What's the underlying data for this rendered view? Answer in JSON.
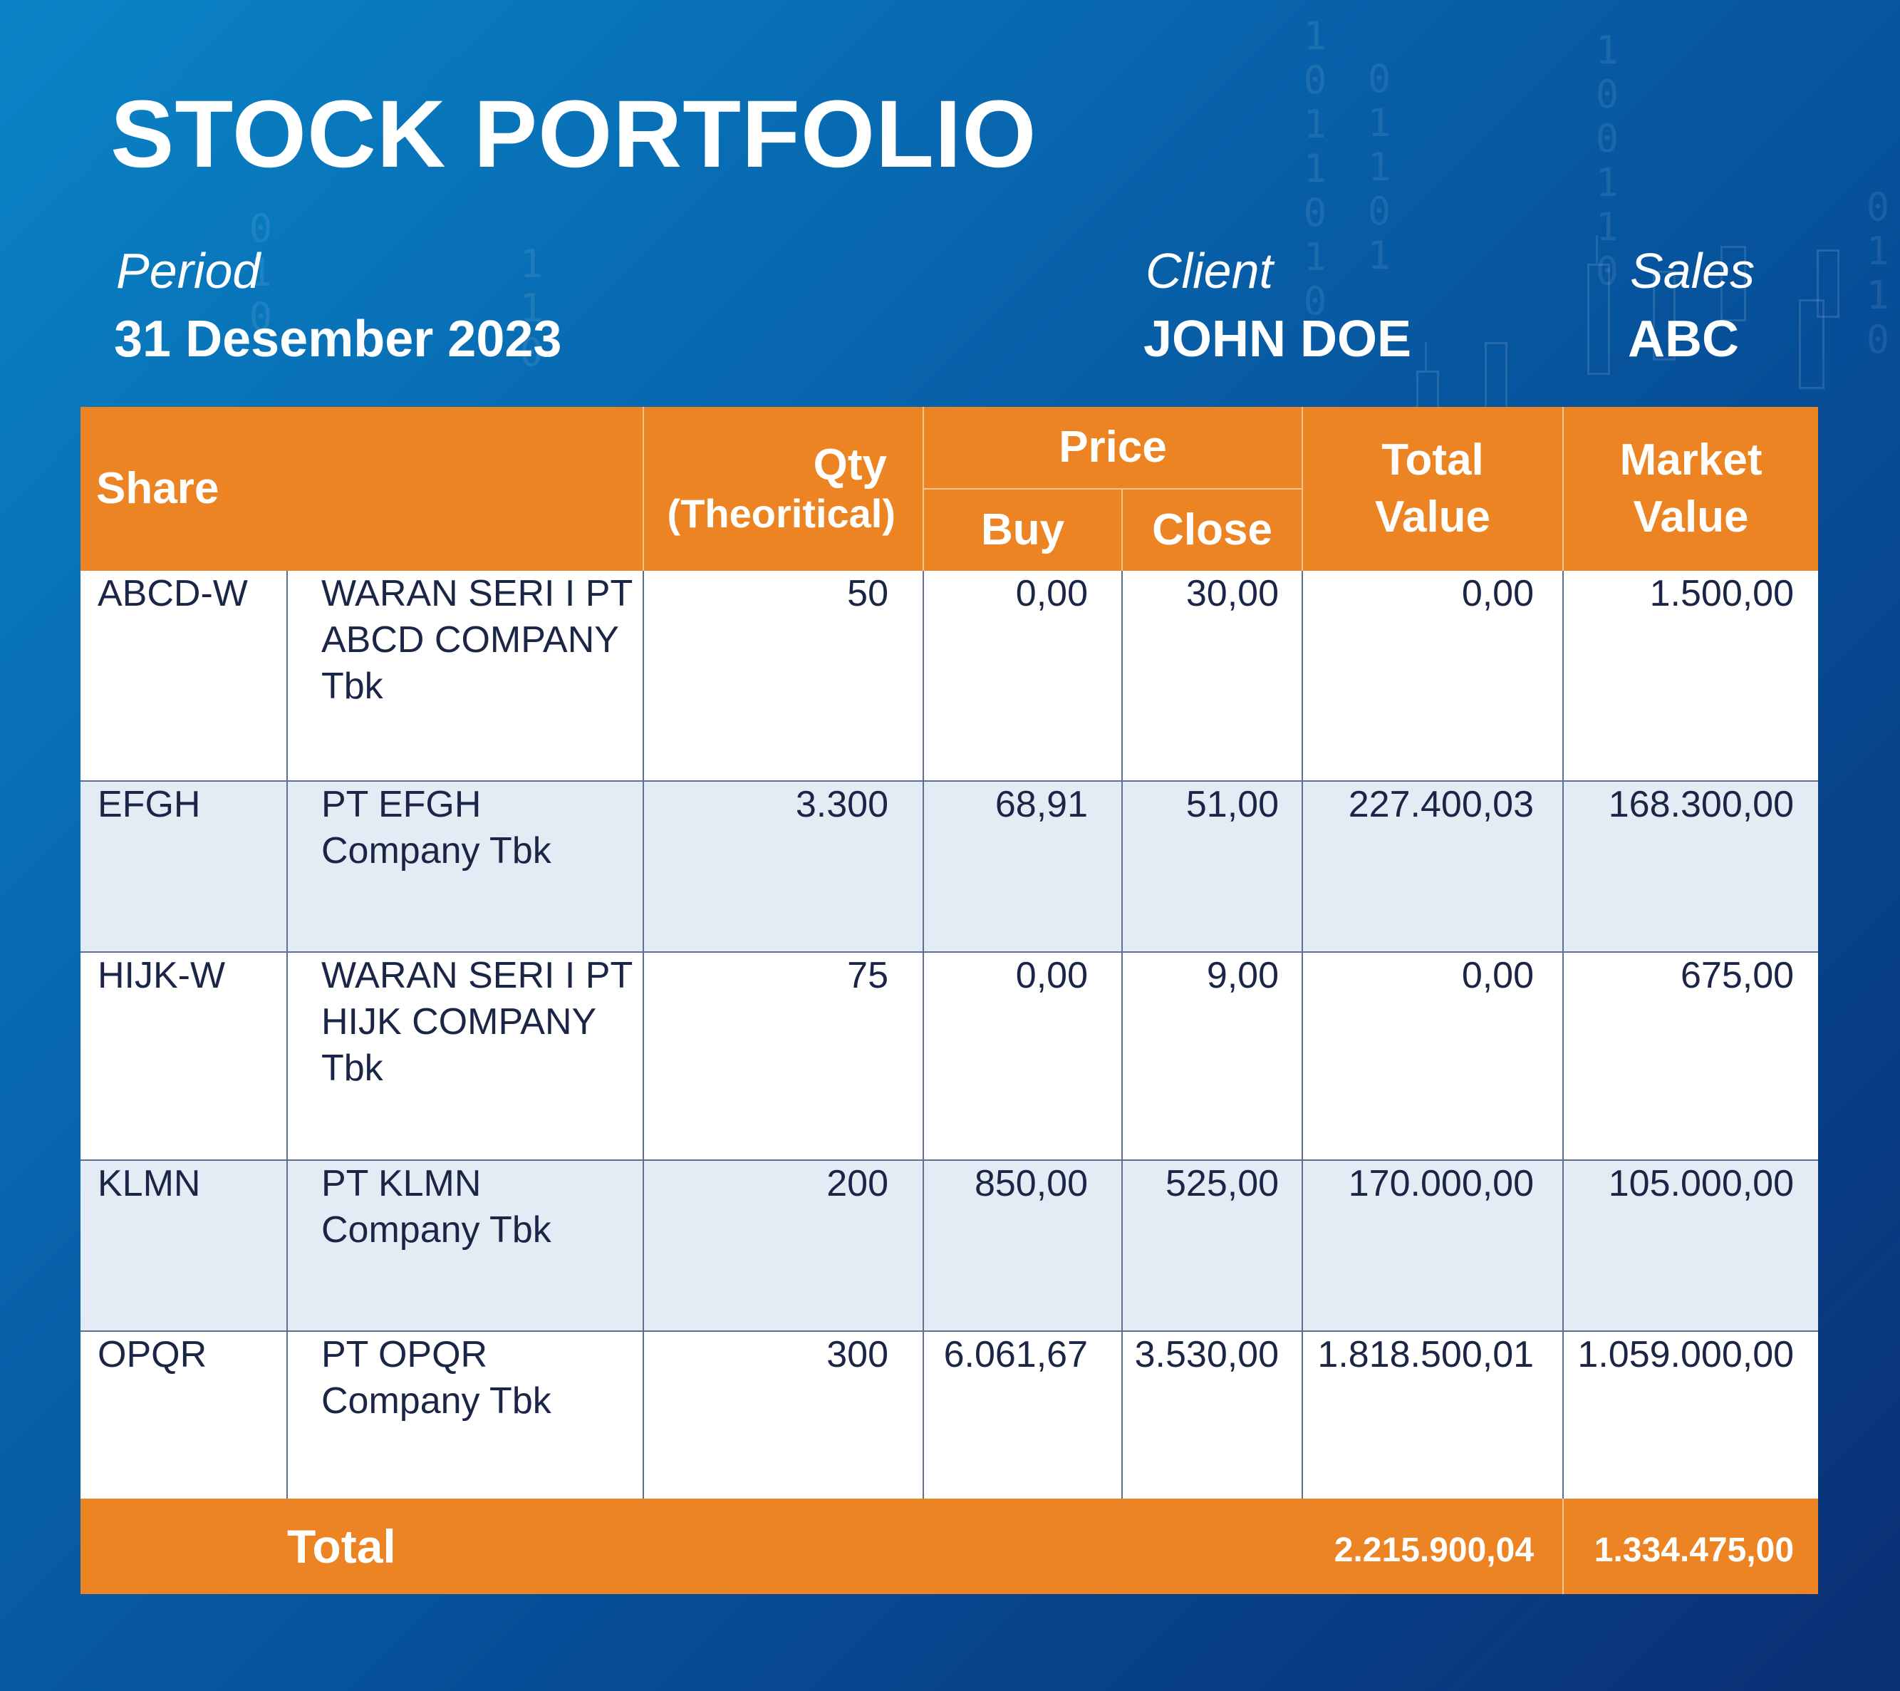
{
  "title": "STOCK PORTFOLIO",
  "meta": {
    "period_label": "Period",
    "period_value": "31 Desember 2023",
    "client_label": "Client",
    "client_value": "JOHN DOE",
    "sales_label": "Sales",
    "sales_value": "ABC"
  },
  "table": {
    "headers": {
      "share": "Share",
      "qty": "Qty",
      "qty_sub": "(Theoritical)",
      "price": "Price",
      "buy": "Buy",
      "close": "Close",
      "total_value_1": "Total",
      "total_value_2": "Value",
      "market_value_1": "Market",
      "market_value_2": "Value"
    },
    "rows": [
      {
        "code": "ABCD-W",
        "name": "WARAN SERI I PT ABCD COMPANY Tbk",
        "qty": "50",
        "buy": "0,00",
        "close": "30,00",
        "total_value": "0,00",
        "market_value": "1.500,00"
      },
      {
        "code": "EFGH",
        "name": "PT EFGH Company Tbk",
        "qty": "3.300",
        "buy": "68,91",
        "close": "51,00",
        "total_value": "227.400,03",
        "market_value": "168.300,00"
      },
      {
        "code": "HIJK-W",
        "name": "WARAN SERI I PT HIJK COMPANY Tbk",
        "qty": "75",
        "buy": "0,00",
        "close": "9,00",
        "total_value": "0,00",
        "market_value": "675,00"
      },
      {
        "code": "KLMN",
        "name": "PT KLMN Company Tbk",
        "qty": "200",
        "buy": "850,00",
        "close": "525,00",
        "total_value": "170.000,00",
        "market_value": "105.000,00"
      },
      {
        "code": "OPQR",
        "name": "PT OPQR Company Tbk",
        "qty": "300",
        "buy": "6.061,67",
        "close": "3.530,00",
        "total_value": "1.818.500,01",
        "market_value": "1.059.000,00"
      }
    ],
    "footer": {
      "label": "Total",
      "total_value": "2.215.900,04",
      "market_value": "1.334.475,00"
    }
  },
  "colors": {
    "header_orange": "#ec8424",
    "row_shade": "#e3ebf5",
    "text_dark": "#1b2647",
    "bg_blue": "#0868b0"
  }
}
